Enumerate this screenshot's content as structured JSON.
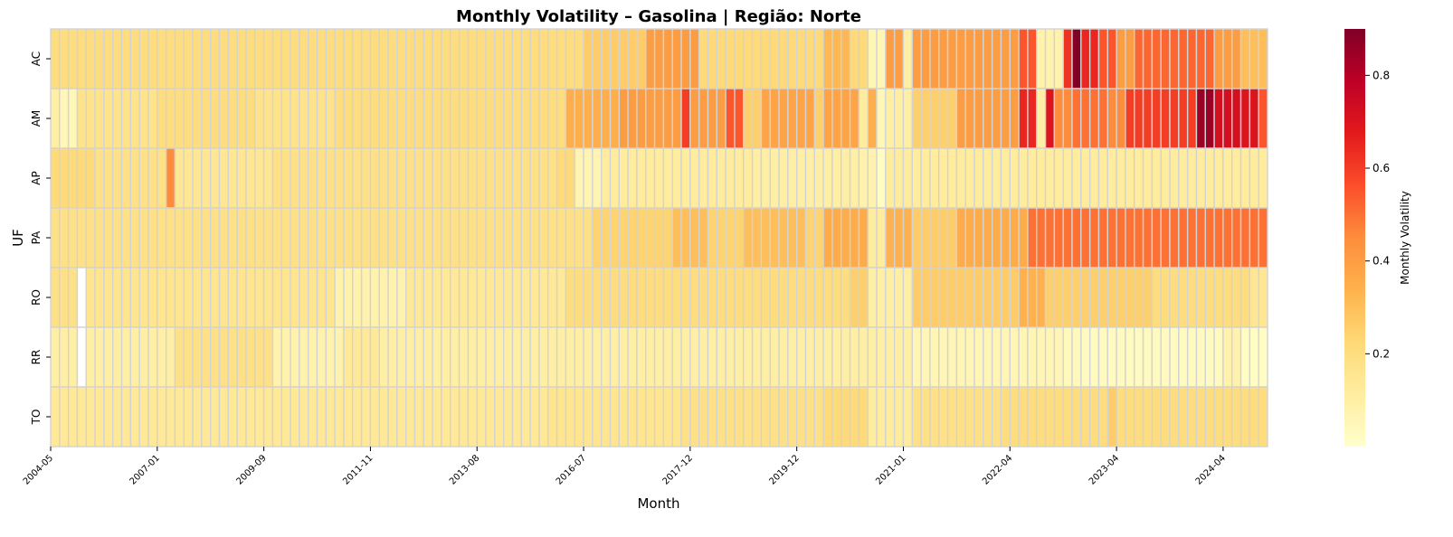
{
  "chart_data": {
    "type": "heatmap",
    "title": "Monthly Volatility – Gasolina | Região: Norte",
    "xlabel": "Month",
    "ylabel": "UF",
    "colorbar_label": "Monthly Volatility",
    "colormap": "YlOrRd",
    "colorbar_range": [
      0.0,
      0.9
    ],
    "colorbar_ticks": [
      "0.2",
      "0.4",
      "0.6",
      "0.8"
    ],
    "missing_color": "#ffffff",
    "grid_line_color": "#d3d3d3",
    "rows": [
      "AC",
      "AM",
      "AP",
      "PA",
      "RO",
      "RR",
      "TO"
    ],
    "x_tick_labels": [
      "2004-05",
      "2007-01",
      "2009-09",
      "2011-11",
      "2013-08",
      "2016-07",
      "2017-12",
      "2019-12",
      "2021-01",
      "2022-04",
      "2023-04",
      "2024-04"
    ],
    "x_tick_positions": [
      0,
      12,
      24,
      36,
      48,
      60,
      72,
      84,
      96,
      108,
      120,
      132
    ],
    "segments": [
      {
        "row": "AC",
        "runs": [
          [
            0,
            59,
            0.2
          ],
          [
            60,
            66,
            0.26
          ],
          [
            67,
            72,
            0.4
          ],
          [
            73,
            86,
            0.22
          ],
          [
            87,
            89,
            0.32
          ],
          [
            90,
            91,
            0.22
          ],
          [
            92,
            93,
            0.06
          ],
          [
            94,
            95,
            0.4
          ],
          [
            96,
            96,
            0.1
          ],
          [
            97,
            101,
            0.4
          ],
          [
            102,
            108,
            0.4
          ],
          [
            109,
            110,
            0.55
          ],
          [
            111,
            113,
            0.08
          ],
          [
            114,
            114,
            0.62
          ],
          [
            115,
            115,
            0.9
          ],
          [
            116,
            117,
            0.65
          ],
          [
            118,
            119,
            0.55
          ],
          [
            120,
            121,
            0.4
          ],
          [
            122,
            130,
            0.52
          ],
          [
            131,
            133,
            0.4
          ],
          [
            134,
            136,
            0.3
          ]
        ]
      },
      {
        "row": "AM",
        "runs": [
          [
            0,
            0,
            0.1
          ],
          [
            1,
            2,
            0.05
          ],
          [
            3,
            11,
            0.17
          ],
          [
            12,
            22,
            0.2
          ],
          [
            23,
            31,
            0.17
          ],
          [
            32,
            57,
            0.2
          ],
          [
            58,
            63,
            0.35
          ],
          [
            64,
            70,
            0.4
          ],
          [
            71,
            71,
            0.6
          ],
          [
            72,
            75,
            0.4
          ],
          [
            76,
            77,
            0.55
          ],
          [
            78,
            79,
            0.25
          ],
          [
            80,
            85,
            0.38
          ],
          [
            86,
            86,
            0.25
          ],
          [
            87,
            90,
            0.38
          ],
          [
            91,
            91,
            0.12
          ],
          [
            92,
            92,
            0.35
          ],
          [
            93,
            93,
            0.05
          ],
          [
            94,
            96,
            0.1
          ],
          [
            97,
            101,
            0.25
          ],
          [
            102,
            108,
            0.4
          ],
          [
            109,
            110,
            0.65
          ],
          [
            111,
            111,
            0.1
          ],
          [
            112,
            112,
            0.7
          ],
          [
            113,
            114,
            0.45
          ],
          [
            115,
            118,
            0.5
          ],
          [
            119,
            120,
            0.45
          ],
          [
            121,
            128,
            0.6
          ],
          [
            129,
            130,
            0.85
          ],
          [
            131,
            133,
            0.72
          ],
          [
            134,
            135,
            0.7
          ],
          [
            136,
            136,
            0.55
          ]
        ]
      },
      {
        "row": "AP",
        "runs": [
          [
            0,
            4,
            0.22
          ],
          [
            5,
            12,
            0.18
          ],
          [
            13,
            13,
            0.45
          ],
          [
            14,
            24,
            0.15
          ],
          [
            25,
            56,
            0.18
          ],
          [
            57,
            58,
            0.22
          ],
          [
            59,
            61,
            0.07
          ],
          [
            62,
            78,
            0.12
          ],
          [
            79,
            90,
            0.1
          ],
          [
            91,
            92,
            0.08
          ],
          [
            93,
            93,
            0.02
          ],
          [
            94,
            136,
            0.12
          ]
        ]
      },
      {
        "row": "PA",
        "runs": [
          [
            0,
            60,
            0.18
          ],
          [
            61,
            69,
            0.24
          ],
          [
            70,
            73,
            0.3
          ],
          [
            74,
            77,
            0.24
          ],
          [
            78,
            84,
            0.3
          ],
          [
            85,
            86,
            0.24
          ],
          [
            87,
            91,
            0.36
          ],
          [
            92,
            93,
            0.12
          ],
          [
            94,
            96,
            0.34
          ],
          [
            97,
            101,
            0.26
          ],
          [
            102,
            109,
            0.36
          ],
          [
            110,
            136,
            0.5
          ]
        ]
      },
      {
        "row": "RO",
        "runs": [
          [
            0,
            2,
            0.18
          ],
          [
            3,
            3,
            0.0
          ],
          [
            4,
            31,
            0.16
          ],
          [
            32,
            39,
            0.08
          ],
          [
            40,
            57,
            0.14
          ],
          [
            58,
            89,
            0.2
          ],
          [
            90,
            91,
            0.25
          ],
          [
            92,
            96,
            0.1
          ],
          [
            97,
            108,
            0.26
          ],
          [
            109,
            111,
            0.34
          ],
          [
            112,
            123,
            0.25
          ],
          [
            124,
            134,
            0.2
          ],
          [
            135,
            136,
            0.15
          ]
        ]
      },
      {
        "row": "RR",
        "runs": [
          [
            0,
            2,
            0.1
          ],
          [
            3,
            3,
            0.0
          ],
          [
            4,
            13,
            0.1
          ],
          [
            14,
            24,
            0.18
          ],
          [
            25,
            32,
            0.08
          ],
          [
            33,
            36,
            0.14
          ],
          [
            37,
            96,
            0.1
          ],
          [
            97,
            113,
            0.06
          ],
          [
            114,
            115,
            0.04
          ],
          [
            116,
            131,
            0.03
          ],
          [
            132,
            133,
            0.08
          ],
          [
            134,
            136,
            0.02
          ]
        ]
      },
      {
        "row": "TO",
        "runs": [
          [
            0,
            55,
            0.14
          ],
          [
            56,
            70,
            0.16
          ],
          [
            71,
            86,
            0.18
          ],
          [
            87,
            91,
            0.22
          ],
          [
            92,
            96,
            0.12
          ],
          [
            97,
            106,
            0.18
          ],
          [
            107,
            118,
            0.2
          ],
          [
            119,
            119,
            0.26
          ],
          [
            120,
            136,
            0.2
          ]
        ]
      }
    ]
  }
}
